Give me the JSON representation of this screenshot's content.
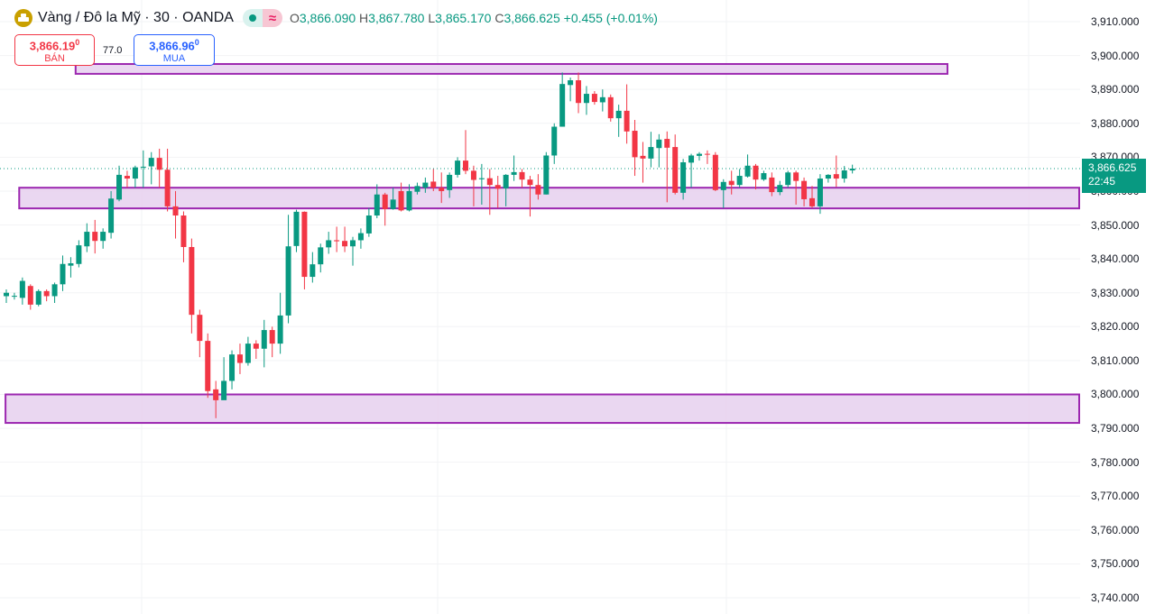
{
  "header": {
    "symbol_icon": "gold-bars-icon",
    "title": "Vàng / Đô la Mỹ · 30 · OANDA",
    "market_status_icon": "market-open-dot-icon",
    "delay_icon": "approx-icon",
    "delay_glyph": "≈",
    "ohlc": {
      "o_label": "O",
      "o": "3,866.090",
      "h_label": "H",
      "h": "3,867.780",
      "l_label": "L",
      "l": "3,865.170",
      "c_label": "C",
      "c": "3,866.625",
      "change": "+0.455 (+0.01%)"
    }
  },
  "trade": {
    "sell_price": "3,866.19",
    "sell_sup": "0",
    "sell_label": "BÁN",
    "spread": "77.0",
    "buy_price": "3,866.96",
    "buy_sup": "0",
    "buy_label": "MUA"
  },
  "last_price": {
    "price": "3,866.625",
    "countdown": "22:45"
  },
  "colors": {
    "up": "#089981",
    "down": "#f23645",
    "zone_fill": "#e8d3f0",
    "zone_border": "#9c27b0"
  },
  "chart_data": {
    "type": "candlestick",
    "title": "Vàng / Đô la Mỹ · 30 · OANDA",
    "ylim": [
      3740,
      3910
    ],
    "y_ticks": [
      "3,910.000",
      "3,900.000",
      "3,890.000",
      "3,880.000",
      "3,870.000",
      "3,860.000",
      "3,850.000",
      "3,840.000",
      "3,830.000",
      "3,820.000",
      "3,810.000",
      "3,800.000",
      "3,790.000",
      "3,780.000",
      "3,770.000",
      "3,760.000",
      "3,750.000",
      "3,740.000"
    ],
    "y_tick_values": [
      3910,
      3900,
      3890,
      3880,
      3870,
      3860,
      3850,
      3840,
      3830,
      3820,
      3810,
      3800,
      3790,
      3780,
      3770,
      3760,
      3750,
      3740
    ],
    "last_value": 3866.625,
    "candles_ohlc": [
      [
        3829,
        3831,
        3827,
        3830
      ],
      [
        3829,
        3830,
        3828,
        3829.1
      ],
      [
        3828.5,
        3834.5,
        3826.5,
        3833.5
      ],
      [
        3832,
        3832.5,
        3825,
        3826.5
      ],
      [
        3826.5,
        3831,
        3826,
        3830.5
      ],
      [
        3830.5,
        3831,
        3827.5,
        3829
      ],
      [
        3829,
        3833,
        3827,
        3832.5
      ],
      [
        3832.5,
        3841,
        3830.5,
        3838.5
      ],
      [
        3838,
        3840.5,
        3834.5,
        3838.7
      ],
      [
        3838.5,
        3845.5,
        3837.5,
        3844
      ],
      [
        3843.7,
        3850.5,
        3842,
        3848
      ],
      [
        3848,
        3851.5,
        3841.6,
        3845.3
      ],
      [
        3845.3,
        3849,
        3843,
        3848
      ],
      [
        3847.7,
        3860,
        3846,
        3857.8
      ],
      [
        3857.5,
        3867.5,
        3857,
        3864.8
      ],
      [
        3864.5,
        3866,
        3861,
        3863.7
      ],
      [
        3863.7,
        3867.5,
        3861,
        3867
      ],
      [
        3867,
        3872,
        3861,
        3867.2
      ],
      [
        3867.3,
        3871.5,
        3862,
        3869.8
      ],
      [
        3869.8,
        3872.5,
        3861,
        3866.3
      ],
      [
        3866.3,
        3872.5,
        3854,
        3855.5
      ],
      [
        3855.5,
        3860,
        3846,
        3852.8
      ],
      [
        3852.8,
        3854,
        3839,
        3843.5
      ],
      [
        3843.5,
        3846,
        3818,
        3823.5
      ],
      [
        3823.5,
        3825,
        3811,
        3815.8
      ],
      [
        3815.8,
        3818,
        3799,
        3801
      ],
      [
        3801.5,
        3804,
        3793,
        3798.3
      ],
      [
        3798.3,
        3811,
        3799,
        3804
      ],
      [
        3804,
        3813,
        3801.5,
        3811.8
      ],
      [
        3811.8,
        3815,
        3806,
        3809.3
      ],
      [
        3809.3,
        3817,
        3808.5,
        3815
      ],
      [
        3815,
        3816,
        3810.5,
        3813.5
      ],
      [
        3813.5,
        3822,
        3808,
        3819
      ],
      [
        3819,
        3820,
        3811,
        3815
      ],
      [
        3815,
        3830,
        3812,
        3823.3
      ],
      [
        3823.3,
        3853,
        3821,
        3843.7
      ],
      [
        3843.8,
        3854.5,
        3842,
        3853.9
      ],
      [
        3853.9,
        3854,
        3831,
        3834.7
      ],
      [
        3834.7,
        3842,
        3833,
        3838.4
      ],
      [
        3838.4,
        3844.5,
        3836,
        3843.4
      ],
      [
        3843.4,
        3848,
        3841.5,
        3845.5
      ],
      [
        3845.5,
        3849.5,
        3842,
        3845.2
      ],
      [
        3845.3,
        3849.5,
        3842,
        3843.7
      ],
      [
        3843.7,
        3846.5,
        3838,
        3845.5
      ],
      [
        3845.5,
        3849,
        3843,
        3847.6
      ],
      [
        3847.5,
        3855,
        3846.5,
        3852.8
      ],
      [
        3852.8,
        3862,
        3852,
        3859
      ],
      [
        3859,
        3859.5,
        3849.8,
        3854.7
      ],
      [
        3854.7,
        3861,
        3854.5,
        3857.5
      ],
      [
        3860,
        3862.5,
        3854,
        3854.3
      ],
      [
        3854.3,
        3862,
        3854,
        3860
      ],
      [
        3859.8,
        3862.5,
        3859,
        3861.5
      ],
      [
        3861,
        3864,
        3859.5,
        3862.5
      ],
      [
        3862.8,
        3866.5,
        3860,
        3861
      ],
      [
        3861,
        3865.5,
        3856.5,
        3860
      ],
      [
        3860.3,
        3865.5,
        3858,
        3864.8
      ],
      [
        3864.8,
        3870,
        3864,
        3869
      ],
      [
        3869,
        3878,
        3865,
        3866
      ],
      [
        3866,
        3867.5,
        3855.5,
        3863.3
      ],
      [
        3863.5,
        3868,
        3856,
        3863.8
      ],
      [
        3863.8,
        3866.5,
        3853,
        3861.8
      ],
      [
        3861.8,
        3864.5,
        3855,
        3860.7
      ],
      [
        3860.8,
        3865,
        3855.5,
        3864.8
      ],
      [
        3864.8,
        3870.5,
        3863,
        3865.6
      ],
      [
        3865.6,
        3866.5,
        3861,
        3863.4
      ],
      [
        3863.4,
        3864.5,
        3852.5,
        3861.8
      ],
      [
        3861.8,
        3865,
        3857.5,
        3859
      ],
      [
        3859,
        3871.5,
        3859,
        3870.5
      ],
      [
        3870.5,
        3880,
        3868,
        3879
      ],
      [
        3879,
        3895,
        3879,
        3891.6
      ],
      [
        3891.3,
        3893.5,
        3886.5,
        3892.7
      ],
      [
        3892.7,
        3895,
        3883,
        3886
      ],
      [
        3886,
        3891,
        3882.5,
        3888.7
      ],
      [
        3888.7,
        3889.5,
        3885.5,
        3886.3
      ],
      [
        3886.2,
        3890,
        3883.5,
        3887.7
      ],
      [
        3887.7,
        3888.5,
        3880.5,
        3881.5
      ],
      [
        3881.5,
        3885.5,
        3876,
        3883.7
      ],
      [
        3883.7,
        3891.5,
        3874,
        3877.6
      ],
      [
        3877.8,
        3881,
        3864.5,
        3870
      ],
      [
        3870.4,
        3874.5,
        3862.5,
        3869.6
      ],
      [
        3869.6,
        3877.5,
        3867,
        3873
      ],
      [
        3872.7,
        3876.8,
        3867,
        3875.2
      ],
      [
        3875.4,
        3877.6,
        3856.7,
        3872.8
      ],
      [
        3873,
        3876.7,
        3859,
        3859.5
      ],
      [
        3859.5,
        3869.5,
        3857.5,
        3868.5
      ],
      [
        3868.4,
        3871,
        3861,
        3870.5
      ],
      [
        3870.4,
        3871.5,
        3869,
        3871
      ],
      [
        3871,
        3872,
        3868,
        3870.8
      ],
      [
        3870.7,
        3871.5,
        3860,
        3860.3
      ],
      [
        3860.3,
        3863.5,
        3855,
        3862.7
      ],
      [
        3863,
        3866,
        3859,
        3861.8
      ],
      [
        3861.8,
        3866.5,
        3861,
        3864.5
      ],
      [
        3864.3,
        3870.8,
        3864,
        3867.5
      ],
      [
        3867.5,
        3868,
        3860.5,
        3863.4
      ],
      [
        3863.4,
        3866,
        3863,
        3865.3
      ],
      [
        3864,
        3865.5,
        3858.5,
        3859.7
      ],
      [
        3859.7,
        3863,
        3858.8,
        3861.8
      ],
      [
        3861.8,
        3866,
        3861,
        3865.5
      ],
      [
        3865.5,
        3866,
        3856,
        3863
      ],
      [
        3863,
        3864,
        3855.5,
        3857.6
      ],
      [
        3857.9,
        3861.5,
        3855,
        3855.5
      ],
      [
        3855.5,
        3865,
        3853.3,
        3863.7
      ],
      [
        3863.7,
        3865,
        3862.5,
        3864.8
      ],
      [
        3865,
        3870.5,
        3861.2,
        3863.7
      ],
      [
        3863.7,
        3867.4,
        3862.5,
        3866.1
      ],
      [
        3866.1,
        3867.8,
        3865.2,
        3866.625
      ]
    ],
    "zones": [
      {
        "name": "resistance-zone-top",
        "from_bar": 8.6,
        "to_bar": 116.8,
        "price_high": 3897.5,
        "price_low": 3894.6
      },
      {
        "name": "support-resistance-zone-mid",
        "from_bar": 1.6,
        "to_bar": "right-edge",
        "price_high": 3861.0,
        "price_low": 3854.9
      },
      {
        "name": "support-zone-bottom",
        "from_bar": -0.1,
        "to_bar": "right-edge",
        "price_high": 3800.0,
        "price_low": 3791.6
      }
    ]
  }
}
